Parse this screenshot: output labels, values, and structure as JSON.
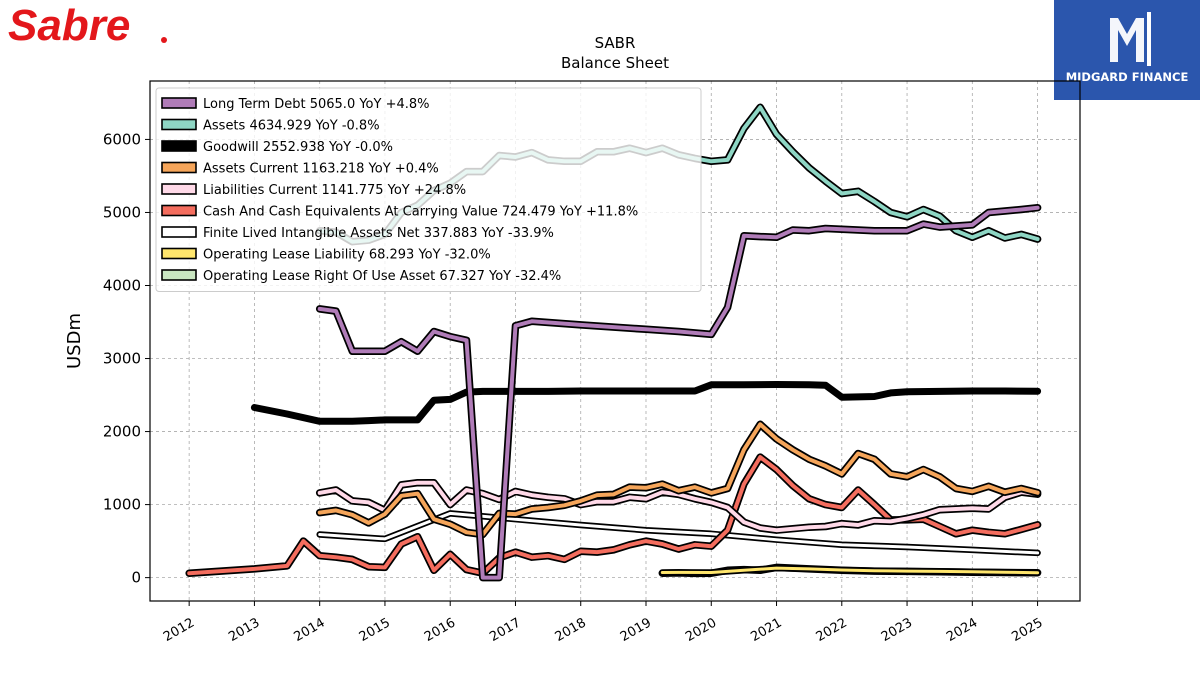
{
  "branding": {
    "left_logo_text": "Sabre",
    "left_logo_color": "#e3171b",
    "right_logo_text": "MIDGARD FINANCE",
    "right_logo_bg": "#2b56ad"
  },
  "chart_data": {
    "type": "line",
    "title": "SABR",
    "subtitle": "Balance  Sheet",
    "ylabel": "USDm",
    "xlabel": "",
    "xlim": [
      2011.4,
      2025.65
    ],
    "ylim": [
      -320,
      6800
    ],
    "xticks": [
      2012,
      2013,
      2014,
      2015,
      2016,
      2017,
      2018,
      2019,
      2020,
      2021,
      2022,
      2023,
      2024,
      2025
    ],
    "xtick_labels": [
      "2012",
      "2013",
      "2014",
      "2015",
      "2016",
      "2017",
      "2018",
      "2019",
      "2020",
      "2021",
      "2022",
      "2023",
      "2024",
      "2025"
    ],
    "yticks": [
      0,
      1000,
      2000,
      3000,
      4000,
      5000,
      6000
    ],
    "ytick_labels": [
      "0",
      "1000",
      "2000",
      "3000",
      "4000",
      "5000",
      "6000"
    ],
    "grid": true,
    "legend_position": "top-left",
    "series": [
      {
        "name": "Operating Lease Right Of Use Asset",
        "legend": "Operating Lease Right Of Use Asset  67.327 YoY -32.4%",
        "color": "#c9e6c1",
        "width": 4,
        "x": [
          2019.25,
          2019.5,
          2019.75,
          2020.0,
          2020.25,
          2020.5,
          2020.75,
          2021.0,
          2021.5,
          2022.0,
          2022.5,
          2023.0,
          2023.5,
          2024.0,
          2024.5,
          2025.0
        ],
        "y": [
          60,
          65,
          58,
          60,
          100,
          110,
          100,
          140,
          120,
          100,
          90,
          85,
          80,
          75,
          70,
          67
        ]
      },
      {
        "name": "Operating Lease Liability",
        "legend": "Operating Lease Liability  68.293 YoY -32.0%",
        "color": "#ffe66d",
        "width": 3,
        "x": [
          2019.25,
          2019.5,
          2020.0,
          2020.5,
          2021.0,
          2021.5,
          2022.0,
          2022.5,
          2023.0,
          2023.5,
          2024.0,
          2024.5,
          2025.0
        ],
        "y": [
          70,
          72,
          70,
          100,
          130,
          120,
          105,
          95,
          90,
          85,
          80,
          75,
          68
        ]
      },
      {
        "name": "Finite Lived Intangible Assets Net",
        "legend": "Finite Lived Intangible Assets Net  337.883 YoY -33.9%",
        "color": "#ffffff",
        "width": 3,
        "x": [
          2014.0,
          2015.0,
          2016.0,
          2017.0,
          2018.0,
          2019.0,
          2020.0,
          2021.0,
          2022.0,
          2023.0,
          2024.0,
          2025.0
        ],
        "y": [
          590,
          530,
          880,
          800,
          720,
          650,
          600,
          520,
          450,
          420,
          380,
          338
        ]
      },
      {
        "name": "Cash And Cash Equivalents At Carrying Value",
        "legend": "Cash And Cash Equivalents At Carrying Value  724.479 YoY +11.8%",
        "color": "#f46d5e",
        "width": 4,
        "x": [
          2012.0,
          2013.0,
          2013.5,
          2013.75,
          2014.0,
          2014.25,
          2014.5,
          2014.75,
          2015.0,
          2015.25,
          2015.5,
          2015.75,
          2016.0,
          2016.25,
          2016.5,
          2016.75,
          2017.0,
          2017.25,
          2017.5,
          2017.75,
          2018.0,
          2018.25,
          2018.5,
          2018.75,
          2019.0,
          2019.25,
          2019.5,
          2019.75,
          2020.0,
          2020.25,
          2020.5,
          2020.75,
          2021.0,
          2021.25,
          2021.5,
          2021.75,
          2022.0,
          2022.25,
          2022.5,
          2022.75,
          2023.0,
          2023.25,
          2023.5,
          2023.75,
          2024.0,
          2024.25,
          2024.5,
          2024.75,
          2025.0
        ],
        "y": [
          60,
          120,
          160,
          500,
          300,
          280,
          250,
          150,
          140,
          460,
          560,
          100,
          320,
          110,
          60,
          270,
          350,
          280,
          300,
          250,
          360,
          350,
          380,
          450,
          500,
          460,
          390,
          450,
          430,
          650,
          1280,
          1650,
          1480,
          1260,
          1080,
          1000,
          960,
          1200,
          1000,
          790,
          790,
          800,
          700,
          600,
          650,
          620,
          600,
          660,
          724
        ]
      },
      {
        "name": "Liabilities Current",
        "legend": "Liabilities Current  1141.775 YoY +24.8%",
        "color": "#ffd9e8",
        "width": 4,
        "x": [
          2014.0,
          2014.25,
          2014.5,
          2014.75,
          2015.0,
          2015.25,
          2015.5,
          2015.75,
          2016.0,
          2016.25,
          2016.5,
          2016.75,
          2017.0,
          2017.25,
          2017.5,
          2017.75,
          2018.0,
          2018.25,
          2018.5,
          2018.75,
          2019.0,
          2019.25,
          2019.5,
          2019.75,
          2020.0,
          2020.25,
          2020.5,
          2020.75,
          2021.0,
          2021.25,
          2021.5,
          2021.75,
          2022.0,
          2022.25,
          2022.5,
          2022.75,
          2023.0,
          2023.25,
          2023.5,
          2023.75,
          2024.0,
          2024.25,
          2024.5,
          2024.75,
          2025.0
        ],
        "y": [
          1160,
          1200,
          1050,
          1030,
          920,
          1270,
          1300,
          1300,
          1000,
          1200,
          1150,
          1070,
          1180,
          1130,
          1100,
          1080,
          1000,
          1040,
          1040,
          1100,
          1080,
          1170,
          1140,
          1080,
          1030,
          960,
          760,
          680,
          650,
          670,
          690,
          700,
          740,
          720,
          780,
          770,
          810,
          860,
          930,
          940,
          950,
          940,
          1100,
          1170,
          1142
        ]
      },
      {
        "name": "Assets Current",
        "legend": "Assets Current  1163.218 YoY +0.4%",
        "color": "#f5a55a",
        "width": 4,
        "x": [
          2014.0,
          2014.25,
          2014.5,
          2014.75,
          2015.0,
          2015.25,
          2015.5,
          2015.75,
          2016.0,
          2016.25,
          2016.5,
          2016.75,
          2017.0,
          2017.25,
          2017.5,
          2017.75,
          2018.0,
          2018.25,
          2018.5,
          2018.75,
          2019.0,
          2019.25,
          2019.5,
          2019.75,
          2020.0,
          2020.25,
          2020.5,
          2020.75,
          2021.0,
          2021.25,
          2021.5,
          2021.75,
          2022.0,
          2022.25,
          2022.5,
          2022.75,
          2023.0,
          2023.25,
          2023.5,
          2023.75,
          2024.0,
          2024.25,
          2024.5,
          2024.75,
          2025.0
        ],
        "y": [
          890,
          920,
          860,
          750,
          870,
          1120,
          1150,
          800,
          730,
          620,
          590,
          880,
          870,
          940,
          960,
          990,
          1050,
          1130,
          1140,
          1240,
          1230,
          1280,
          1190,
          1240,
          1160,
          1220,
          1750,
          2100,
          1900,
          1750,
          1620,
          1530,
          1420,
          1700,
          1620,
          1420,
          1380,
          1480,
          1380,
          1220,
          1180,
          1250,
          1170,
          1220,
          1163
        ]
      },
      {
        "name": "Goodwill",
        "legend": "Goodwill  2552.938 YoY -0.0%",
        "color": "#000000",
        "width": 7,
        "x": [
          2013.0,
          2013.5,
          2014.0,
          2014.5,
          2014.75,
          2015.0,
          2015.25,
          2015.5,
          2015.75,
          2016.0,
          2016.25,
          2016.5,
          2017.0,
          2017.5,
          2018.0,
          2018.5,
          2019.0,
          2019.5,
          2019.75,
          2020.0,
          2020.5,
          2021.0,
          2021.5,
          2021.75,
          2022.0,
          2022.5,
          2022.75,
          2023.0,
          2023.5,
          2024.0,
          2024.5,
          2025.0
        ],
        "y": [
          2330,
          2240,
          2140,
          2140,
          2150,
          2160,
          2160,
          2160,
          2430,
          2440,
          2540,
          2550,
          2550,
          2550,
          2555,
          2555,
          2555,
          2555,
          2555,
          2640,
          2640,
          2645,
          2640,
          2635,
          2470,
          2480,
          2530,
          2545,
          2550,
          2555,
          2555,
          2553
        ]
      },
      {
        "name": "Assets",
        "legend": "Assets  4634.929 YoY -0.8%",
        "color": "#8ed6c4",
        "width": 4,
        "x": [
          2014.0,
          2014.25,
          2014.5,
          2014.75,
          2015.0,
          2015.25,
          2015.5,
          2015.75,
          2016.0,
          2016.25,
          2016.5,
          2016.75,
          2017.0,
          2017.25,
          2017.5,
          2017.75,
          2018.0,
          2018.25,
          2018.5,
          2018.75,
          2019.0,
          2019.25,
          2019.5,
          2019.75,
          2020.0,
          2020.25,
          2020.5,
          2020.75,
          2021.0,
          2021.25,
          2021.5,
          2021.75,
          2022.0,
          2022.25,
          2022.5,
          2022.75,
          2023.0,
          2023.25,
          2023.5,
          2023.75,
          2024.0,
          2024.25,
          2024.5,
          2024.75,
          2025.0
        ],
        "y": [
          4750,
          4730,
          4600,
          4620,
          4700,
          5000,
          5100,
          5300,
          5400,
          5560,
          5560,
          5780,
          5760,
          5820,
          5720,
          5700,
          5700,
          5830,
          5830,
          5880,
          5820,
          5880,
          5790,
          5740,
          5700,
          5720,
          6150,
          6440,
          6070,
          5830,
          5610,
          5430,
          5260,
          5290,
          5150,
          5000,
          4940,
          5040,
          4950,
          4750,
          4660,
          4750,
          4650,
          4700,
          4635
        ]
      },
      {
        "name": "Long Term Debt",
        "legend": "Long Term Debt  5065.0 YoY +4.8%",
        "color": "#b07cb8",
        "width": 4,
        "x": [
          2014.0,
          2014.25,
          2014.5,
          2014.75,
          2015.0,
          2015.25,
          2015.5,
          2015.75,
          2016.0,
          2016.25,
          2016.5,
          2016.75,
          2017.0,
          2017.25,
          2018.0,
          2019.0,
          2019.5,
          2020.0,
          2020.25,
          2020.5,
          2020.75,
          2021.0,
          2021.25,
          2021.5,
          2021.75,
          2022.0,
          2022.5,
          2023.0,
          2023.25,
          2023.5,
          2024.0,
          2024.25,
          2024.5,
          2024.75,
          2025.0
        ],
        "y": [
          3680,
          3650,
          3100,
          3100,
          3100,
          3230,
          3100,
          3370,
          3300,
          3250,
          0,
          0,
          3450,
          3510,
          3460,
          3400,
          3370,
          3330,
          3700,
          4680,
          4670,
          4660,
          4760,
          4750,
          4780,
          4770,
          4750,
          4750,
          4840,
          4800,
          4830,
          5000,
          5020,
          5040,
          5065
        ]
      }
    ]
  }
}
